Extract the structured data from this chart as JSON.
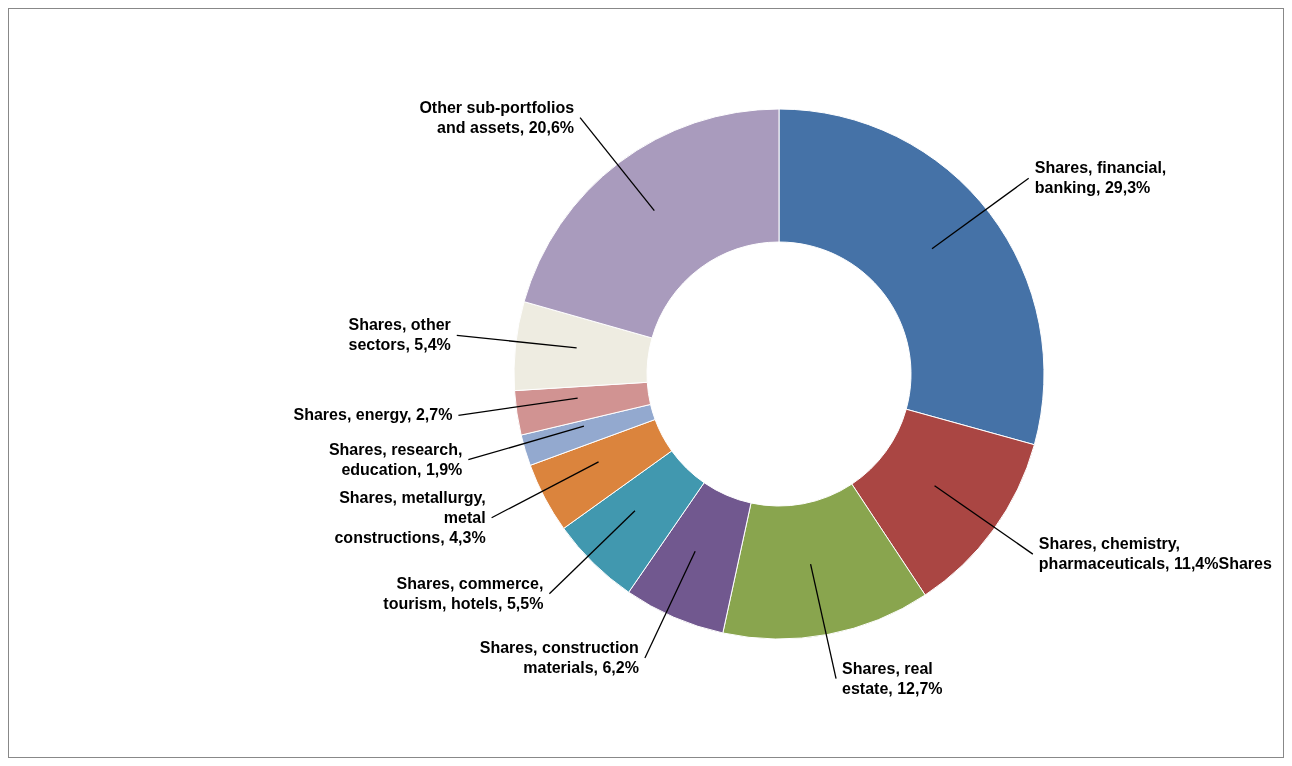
{
  "chart_data": {
    "type": "donut",
    "categories": [
      "Shares, financial, banking",
      "Shares, chemistry, pharmaceuticals",
      "Shares, real estate",
      "Shares, construction materials",
      "Shares, commerce, tourism, hotels",
      "Shares, metallurgy, metal constructions",
      "Shares, research, education",
      "Shares, energy",
      "Shares, other sectors",
      "Other sub-portfolios and assets"
    ],
    "values": [
      29.3,
      11.4,
      12.7,
      6.2,
      5.5,
      4.3,
      1.9,
      2.7,
      5.4,
      20.6
    ],
    "colors": [
      "#4572a7",
      "#aa4643",
      "#89a54e",
      "#71588f",
      "#4198af",
      "#db843d",
      "#93a9cf",
      "#d19392",
      "#eeece1",
      "#a99bbd"
    ],
    "value_labels": [
      "29,3%",
      "11,4%Shares",
      "12,7%",
      "6,2%",
      "5,5%",
      "4,3%",
      "1,9%",
      "2,7%",
      "5,4%",
      "20,6%"
    ]
  }
}
